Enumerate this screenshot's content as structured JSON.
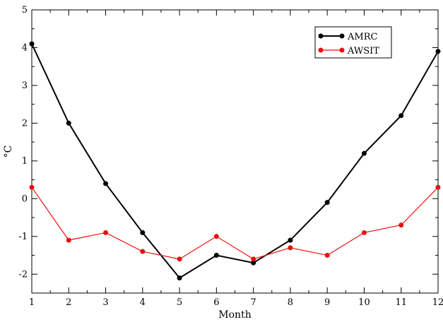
{
  "chart_data": {
    "type": "line",
    "xlabel": "Month",
    "ylabel": "°C",
    "xlim": [
      1,
      12
    ],
    "ylim": [
      -2.5,
      5
    ],
    "xticks": [
      "1",
      "2",
      "3",
      "4",
      "5",
      "6",
      "7",
      "8",
      "9",
      "10",
      "11",
      "12"
    ],
    "yticks": [
      "-2",
      "-1",
      "0",
      "1",
      "2",
      "3",
      "4",
      "5"
    ],
    "grid": false,
    "legend_position": "top-right",
    "x": [
      1,
      2,
      3,
      4,
      5,
      6,
      7,
      8,
      9,
      10,
      11,
      12
    ],
    "series": [
      {
        "name": "AMRC",
        "color": "#000000",
        "values": [
          4.1,
          2.0,
          0.4,
          -0.9,
          -2.1,
          -1.5,
          -1.7,
          -1.1,
          -0.1,
          1.2,
          2.2,
          3.9
        ]
      },
      {
        "name": "AWSIT",
        "color": "#e8100f",
        "values": [
          0.3,
          -1.1,
          -0.9,
          -1.4,
          -1.6,
          -1.0,
          -1.6,
          -1.3,
          -1.5,
          -0.9,
          -0.7,
          0.3
        ]
      }
    ]
  }
}
